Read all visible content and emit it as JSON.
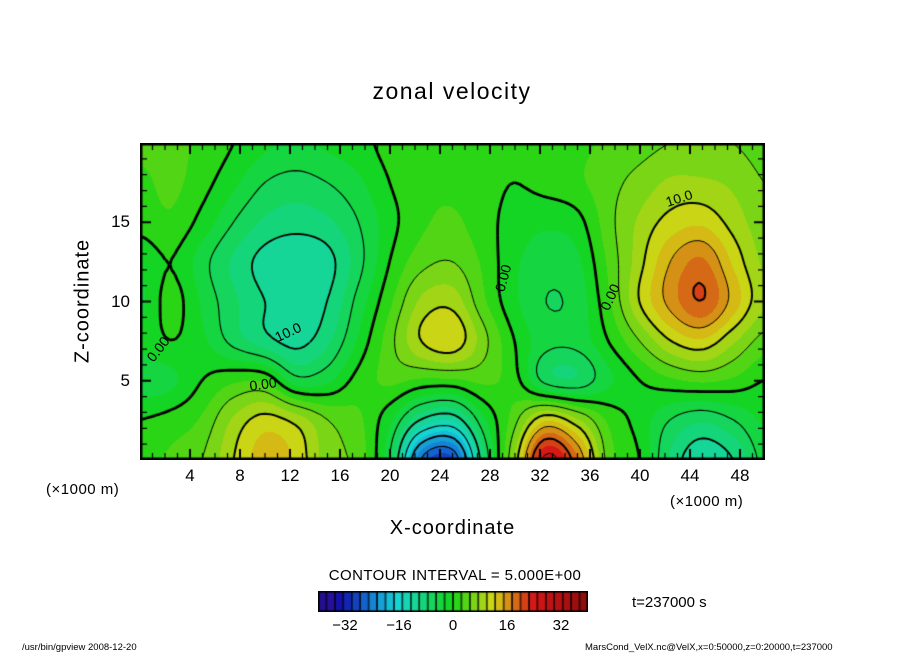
{
  "title": "zonal velocity",
  "axes": {
    "x_label": "X-coordinate",
    "y_label": "Z-coordinate",
    "x_unit": "(×1000 m)",
    "y_unit": "(×1000 m)",
    "x_ticks": [
      4,
      8,
      12,
      16,
      20,
      24,
      28,
      32,
      36,
      40,
      44,
      48
    ],
    "y_ticks": [
      5,
      10,
      15
    ]
  },
  "contour_info": "CONTOUR INTERVAL = 5.000E+00",
  "time_label": "t=237000 s",
  "footer_left": "/usr/bin/gpview  2008-12-20",
  "footer_right": "MarsCond_VelX.nc@VelX,x=0:50000,z=0:20000,t=237000",
  "colorbar": {
    "ticks": [
      -32,
      -16,
      0,
      16,
      32
    ],
    "vmin": -40,
    "vmax": 40,
    "band_step": 2.5
  },
  "chart_data": {
    "type": "heatmap",
    "title": "zonal velocity",
    "xlabel": "X-coordinate (×1000 m)",
    "ylabel": "Z-coordinate (×1000 m)",
    "x_range": [
      0,
      50
    ],
    "z_range": [
      0,
      20
    ],
    "contour_interval": 5.0,
    "time": "t=237000 s",
    "x": [
      0,
      2.5,
      5,
      7.5,
      10,
      12.5,
      15,
      17.5,
      20,
      22.5,
      25,
      27.5,
      30,
      32.5,
      35,
      37.5,
      40,
      42.5,
      45,
      47.5,
      50
    ],
    "z": [
      0,
      2.5,
      5,
      7.5,
      10,
      12.5,
      15,
      17.5,
      20
    ],
    "values_note": "rows ordered from z=0 (bottom) to z=20 (top); values estimated from fill colors and contours",
    "values": [
      [
        2,
        3,
        5,
        10,
        14,
        12,
        6,
        4,
        -5,
        -25,
        -28,
        -8,
        8,
        26,
        18,
        4,
        0,
        -8,
        -12,
        -10,
        -4
      ],
      [
        0,
        1,
        3,
        8,
        11,
        9,
        5,
        3,
        -2,
        -10,
        -12,
        -3,
        4,
        12,
        8,
        2,
        -1,
        -5,
        -7,
        -5,
        -2
      ],
      [
        -4,
        -3,
        0,
        2,
        2,
        -4,
        -3,
        1,
        3,
        2,
        2,
        3,
        1,
        -6,
        -7,
        -3,
        0,
        2,
        3,
        2,
        0
      ],
      [
        -2,
        0,
        -2,
        -6,
        -9,
        -11,
        -8,
        -2,
        4,
        10,
        12,
        6,
        0,
        -4,
        -4,
        0,
        5,
        10,
        12,
        8,
        4
      ],
      [
        -3,
        1,
        -3,
        -7,
        -10,
        -12,
        -10,
        -4,
        2,
        8,
        9,
        3,
        -2,
        -5,
        -4,
        2,
        10,
        16,
        20,
        14,
        8
      ],
      [
        -2,
        0,
        -4,
        -8,
        -11,
        -12,
        -11,
        -6,
        0,
        4,
        5,
        2,
        -2,
        -4,
        -3,
        3,
        9,
        15,
        18,
        12,
        7
      ],
      [
        1,
        2,
        -1,
        -5,
        -8,
        -9,
        -8,
        -5,
        -1,
        2,
        3,
        1,
        -1,
        -2,
        -1,
        4,
        8,
        11,
        12,
        9,
        6
      ],
      [
        2,
        3,
        1,
        -2,
        -5,
        -6,
        -5,
        -3,
        0,
        2,
        2,
        1,
        0,
        1,
        2,
        4,
        6,
        8,
        8,
        7,
        5
      ],
      [
        3,
        3,
        2,
        0,
        -2,
        -3,
        -2,
        -1,
        1,
        2,
        2,
        1,
        1,
        2,
        2,
        3,
        4,
        5,
        5,
        5,
        4
      ]
    ],
    "contour_labels": [
      {
        "text": "0.00",
        "x": 1.4,
        "z": 7.0,
        "rot": -52
      },
      {
        "text": "0.00",
        "x": 9.8,
        "z": 4.8,
        "rot": -8
      },
      {
        "text": "10.0",
        "x": 11.8,
        "z": 8.1,
        "rot": -25
      },
      {
        "text": "0.00",
        "x": 29.0,
        "z": 11.5,
        "rot": -75
      },
      {
        "text": "0.00",
        "x": 37.6,
        "z": 10.3,
        "rot": -65
      },
      {
        "text": "10.0",
        "x": 43.1,
        "z": 16.5,
        "rot": -18
      }
    ],
    "legend_position": "bottom colorbar",
    "grid": false
  }
}
